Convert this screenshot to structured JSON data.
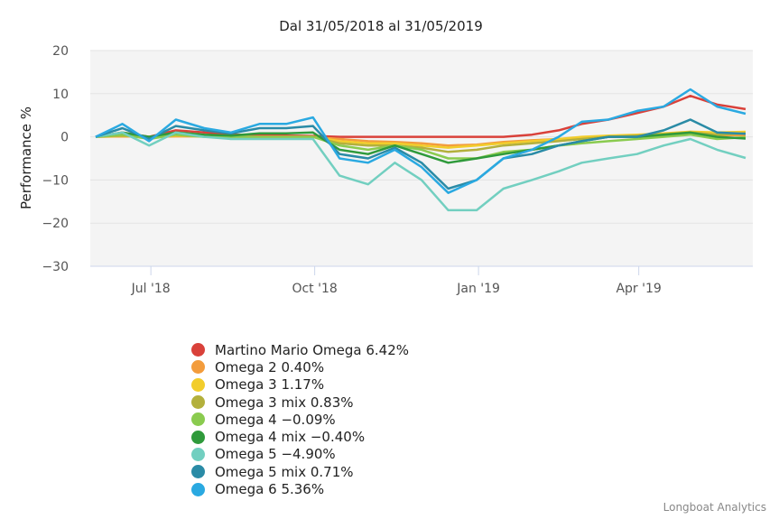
{
  "chart_data": {
    "type": "line",
    "title": "Dal 31/05/2018 al 31/05/2019",
    "ylabel": "Performance %",
    "ylim": [
      -30,
      20
    ],
    "yticks": [
      20,
      10,
      0,
      -10,
      -20,
      -30
    ],
    "xlim": [
      "2018-05-31",
      "2019-05-31"
    ],
    "xticks": [
      {
        "date": "2018-07-01",
        "label": "Jul '18"
      },
      {
        "date": "2018-10-01",
        "label": "Oct '18"
      },
      {
        "date": "2019-01-01",
        "label": "Jan '19"
      },
      {
        "date": "2019-04-01",
        "label": "Apr '19"
      }
    ],
    "grid": true,
    "legend": "bottom-left",
    "x": [
      "2018-05-31",
      "2018-06-15",
      "2018-06-30",
      "2018-07-15",
      "2018-07-31",
      "2018-08-15",
      "2018-08-31",
      "2018-09-15",
      "2018-09-30",
      "2018-10-15",
      "2018-10-31",
      "2018-11-15",
      "2018-11-30",
      "2018-12-15",
      "2018-12-31",
      "2019-01-15",
      "2019-01-31",
      "2019-02-15",
      "2019-02-28",
      "2019-03-15",
      "2019-03-31",
      "2019-04-15",
      "2019-04-30",
      "2019-05-15",
      "2019-05-31"
    ],
    "series": [
      {
        "name": "Martino Mario Omega 6.42%",
        "color": "#d9413a",
        "values": [
          0,
          1,
          0,
          1.5,
          1,
          0.5,
          0.5,
          0.3,
          0.2,
          0,
          0,
          0,
          0,
          0,
          0,
          0,
          0.5,
          1.5,
          3,
          4,
          5.5,
          7,
          9.5,
          7.5,
          6.42
        ]
      },
      {
        "name": "Omega 2 0.40%",
        "color": "#f39c3c",
        "values": [
          0,
          0.1,
          0,
          0.1,
          0.1,
          0,
          0,
          0,
          0,
          -0.5,
          -1,
          -1.2,
          -1.5,
          -2,
          -1.8,
          -1.2,
          -0.8,
          -0.5,
          -0.2,
          0,
          0.2,
          0.3,
          0.6,
          0.4,
          0.4
        ]
      },
      {
        "name": "Omega 3 1.17%",
        "color": "#f2cd2c",
        "values": [
          0,
          0.2,
          0,
          0.3,
          0.2,
          0,
          0,
          0,
          0,
          -1,
          -1.5,
          -1.5,
          -2,
          -2.5,
          -2,
          -1.5,
          -1,
          -0.5,
          0,
          0.3,
          0.5,
          0.8,
          1.2,
          1,
          1.17
        ]
      },
      {
        "name": "Omega 3 mix 0.83%",
        "color": "#b3b03c",
        "values": [
          0,
          0.3,
          0,
          0.5,
          0.3,
          0,
          0,
          0,
          0,
          -1.5,
          -2,
          -2,
          -2.5,
          -3.5,
          -3,
          -2,
          -1.5,
          -1,
          -0.5,
          0,
          0.3,
          0.6,
          1,
          0.5,
          0.83
        ]
      },
      {
        "name": "Omega 4 -0.09%",
        "color": "#8acb4f",
        "values": [
          0,
          0.5,
          -0.5,
          0.5,
          0,
          0,
          0,
          0,
          0,
          -2,
          -3,
          -2,
          -3,
          -5,
          -5,
          -3.5,
          -3,
          -2,
          -1.5,
          -1,
          -0.5,
          0,
          0.5,
          -0.5,
          -0.09
        ]
      },
      {
        "name": "Omega 4 mix -0.40%",
        "color": "#2f9a3b",
        "values": [
          0,
          1,
          0,
          1,
          0.5,
          0.3,
          0.8,
          0.8,
          1,
          -3,
          -4,
          -2,
          -4,
          -6,
          -5,
          -4,
          -3,
          -2,
          -1,
          0,
          0,
          0.5,
          1,
          0,
          -0.4
        ]
      },
      {
        "name": "Omega 5 -4.90%",
        "color": "#72cfc0",
        "values": [
          0,
          1,
          -2,
          1,
          0,
          -0.5,
          -0.5,
          -0.5,
          -0.5,
          -9,
          -11,
          -6,
          -10,
          -17,
          -17,
          -12,
          -10,
          -8,
          -6,
          -5,
          -4,
          -2,
          -0.5,
          -3,
          -4.9
        ]
      },
      {
        "name": "Omega 5 mix 0.71%",
        "color": "#2a8ba6",
        "values": [
          0,
          2,
          -0.5,
          2.5,
          1.5,
          0.8,
          2,
          2,
          2.5,
          -4,
          -5,
          -2.5,
          -6,
          -12,
          -10,
          -5,
          -4,
          -2,
          -1,
          0,
          0,
          1.5,
          4,
          1,
          0.71
        ]
      },
      {
        "name": "Omega 6 5.36%",
        "color": "#2aa9e1",
        "values": [
          0,
          3,
          -1,
          4,
          2,
          1,
          3,
          3,
          4.5,
          -5,
          -6,
          -3,
          -7,
          -13,
          -10,
          -5,
          -3,
          0,
          3.5,
          4,
          6,
          7,
          11,
          7,
          5.36
        ]
      }
    ]
  },
  "credit": "Longboat Analytics"
}
